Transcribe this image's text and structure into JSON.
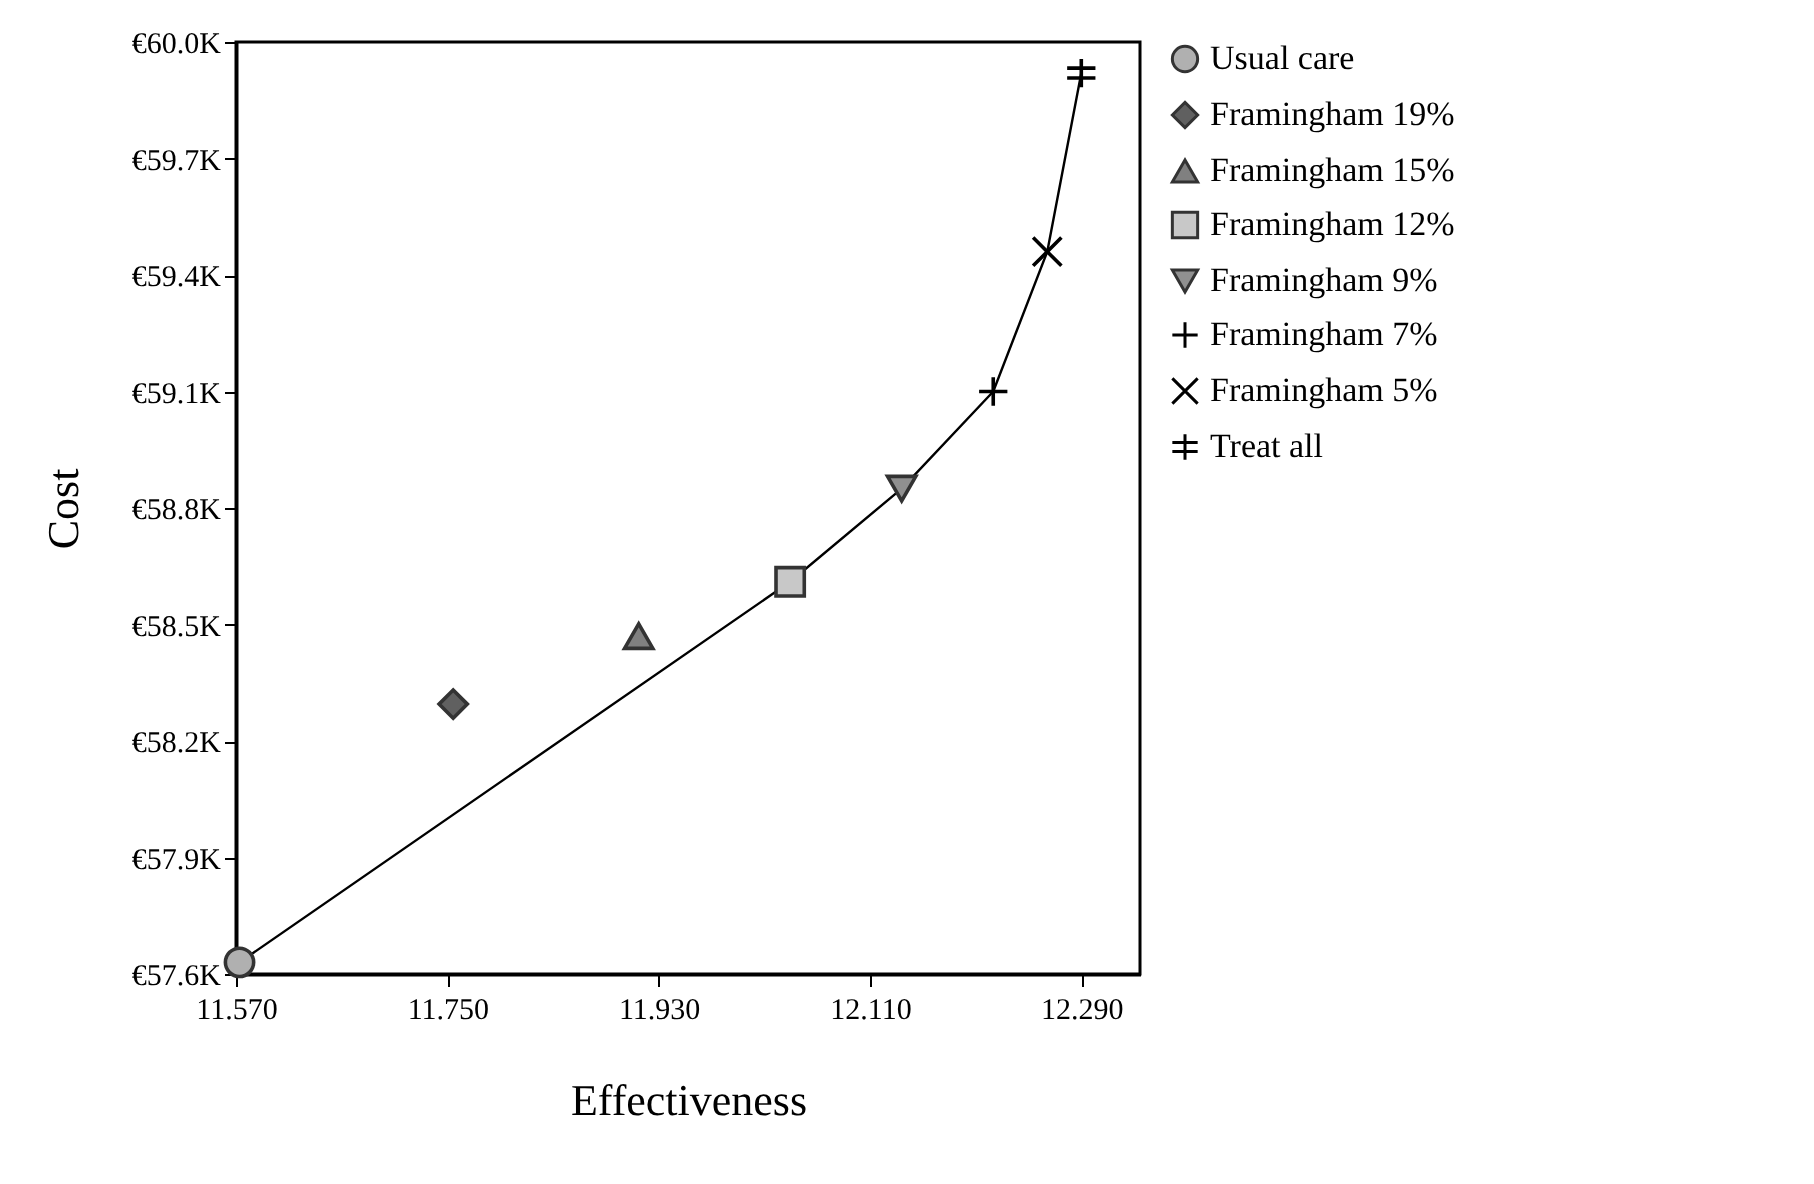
{
  "chart_data": {
    "type": "scatter",
    "xlabel": "Effectiveness",
    "ylabel": "Cost",
    "xlim": [
      11.57,
      12.34
    ],
    "ylim": [
      57600,
      60000
    ],
    "xticks": [
      {
        "value": 11.57,
        "label": "11.570"
      },
      {
        "value": 11.75,
        "label": "11.750"
      },
      {
        "value": 11.93,
        "label": "11.930"
      },
      {
        "value": 12.11,
        "label": "12.110"
      },
      {
        "value": 12.29,
        "label": "12.290"
      }
    ],
    "yticks": [
      {
        "value": 57600,
        "label": "€57.6K"
      },
      {
        "value": 57900,
        "label": "€57.9K"
      },
      {
        "value": 58200,
        "label": "€58.2K"
      },
      {
        "value": 58500,
        "label": "€58.5K"
      },
      {
        "value": 58800,
        "label": "€58.8K"
      },
      {
        "value": 59100,
        "label": "€59.1K"
      },
      {
        "value": 59400,
        "label": "€59.4K"
      },
      {
        "value": 59700,
        "label": "€59.7K"
      },
      {
        "value": 60000,
        "label": "€60.0K"
      }
    ],
    "grid": false,
    "legend": "right",
    "series": [
      {
        "type": "line",
        "color": "#000000",
        "x": [
          11.573,
          12.042,
          12.137,
          12.215,
          12.261,
          12.29
        ],
        "values": [
          57630,
          58610,
          58850,
          59100,
          59460,
          59920
        ]
      },
      {
        "name": "Usual care",
        "color": "#b0b0b0",
        "marker": "circle",
        "x": [
          11.573
        ],
        "values": [
          57630
        ]
      },
      {
        "name": "Framingham 19%",
        "color": "#606060",
        "marker": "diamond",
        "x": [
          11.755
        ],
        "values": [
          58295
        ]
      },
      {
        "name": "Framingham 15%",
        "color": "#808080",
        "marker": "triangle",
        "x": [
          11.913
        ],
        "values": [
          58470
        ]
      },
      {
        "name": "Framingham 12%",
        "color": "#c8c8c8",
        "marker": "square",
        "x": [
          12.042
        ],
        "values": [
          58610
        ]
      },
      {
        "name": "Framingham 9%",
        "color": "#909090",
        "marker": "triangle-down",
        "x": [
          12.137
        ],
        "values": [
          58850
        ]
      },
      {
        "name": "Framingham 7%",
        "color": "#000000",
        "marker": "plus",
        "x": [
          12.215
        ],
        "values": [
          59100
        ]
      },
      {
        "name": "Framingham 5%",
        "color": "#000000",
        "marker": "x",
        "x": [
          12.261
        ],
        "values": [
          59460
        ]
      },
      {
        "name": "Treat all",
        "color": "#000000",
        "marker": "cross",
        "x": [
          12.29
        ],
        "values": [
          59920
        ]
      }
    ]
  }
}
